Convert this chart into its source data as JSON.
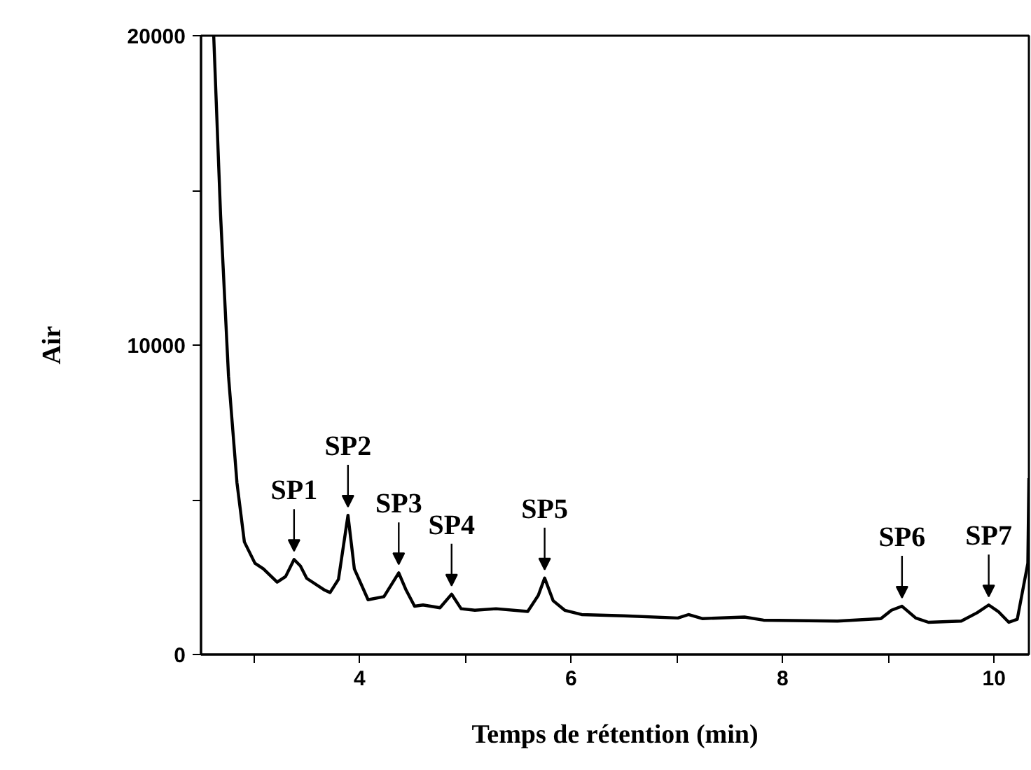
{
  "chart_data": {
    "type": "line",
    "xlabel": "Temps de rétention (min)",
    "ylabel": "Air",
    "xlim": [
      2.5,
      10.33
    ],
    "ylim": [
      0,
      20000
    ],
    "xticks": [
      {
        "value": 3,
        "label": null
      },
      4,
      {
        "value": 5,
        "label": null
      },
      6,
      {
        "value": 7,
        "label": null
      },
      8,
      {
        "value": 9,
        "label": null
      },
      10
    ],
    "yticks": [
      0,
      {
        "value": 5000,
        "label": null
      },
      10000,
      {
        "value": 15000,
        "label": null
      },
      20000
    ],
    "grid": false,
    "marker": "none",
    "line_style": "solid",
    "series": [
      {
        "color": "#000000",
        "x": [
          2.62,
          2.685,
          2.76,
          2.84,
          2.91,
          3.01,
          3.09,
          3.22,
          3.3,
          3.38,
          3.44,
          3.5,
          3.67,
          3.72,
          3.8,
          3.89,
          3.95,
          4.08,
          4.23,
          4.37,
          4.44,
          4.52,
          4.6,
          4.76,
          4.87,
          4.96,
          5.09,
          5.29,
          5.59,
          5.69,
          5.75,
          5.83,
          5.94,
          6.1,
          6.5,
          7.01,
          7.11,
          7.24,
          7.64,
          7.82,
          8.52,
          8.93,
          9.03,
          9.13,
          9.26,
          9.38,
          9.69,
          9.84,
          9.95,
          10.04,
          10.14,
          10.22,
          10.32,
          10.33
        ],
        "values": [
          20000,
          14200,
          9000,
          5550,
          3640,
          2950,
          2770,
          2340,
          2520,
          3070,
          2860,
          2460,
          2080,
          2000,
          2430,
          4500,
          2770,
          1770,
          1870,
          2640,
          2080,
          1560,
          1600,
          1510,
          1950,
          1480,
          1430,
          1480,
          1390,
          1910,
          2470,
          1740,
          1430,
          1290,
          1250,
          1180,
          1290,
          1160,
          1210,
          1110,
          1080,
          1160,
          1430,
          1560,
          1180,
          1040,
          1080,
          1350,
          1600,
          1390,
          1040,
          1140,
          2950,
          5700
        ]
      }
    ],
    "annotations": [
      {
        "text": "SP1",
        "x": 3.38,
        "y": 3070
      },
      {
        "text": "SP2",
        "x": 3.89,
        "y": 4500
      },
      {
        "text": "SP3",
        "x": 4.37,
        "y": 2640
      },
      {
        "text": "SP4",
        "x": 4.87,
        "y": 1950
      },
      {
        "text": "SP5",
        "x": 5.75,
        "y": 2470
      },
      {
        "text": "SP6",
        "x": 9.13,
        "y": 1560
      },
      {
        "text": "SP7",
        "x": 9.95,
        "y": 1600
      }
    ]
  }
}
